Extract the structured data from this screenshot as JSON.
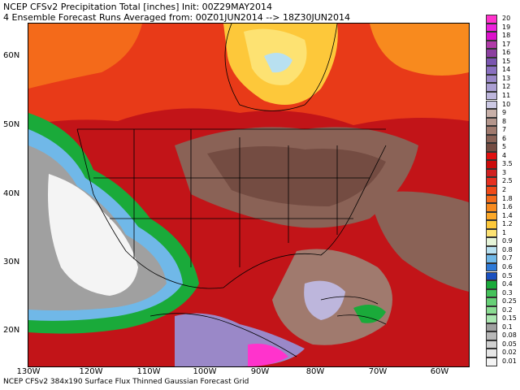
{
  "header": {
    "line1": "NCEP CFSv2 Precipitation Total [inches] Init: 00Z29MAY2014",
    "line2": "4 Ensemble Forecast Runs Averaged from: 00Z01JUN2014 --> 18Z30JUN2014"
  },
  "footer": "NCEP CFSv2 384x190 Surface Flux Thinned Gaussian Forecast Grid",
  "axes": {
    "lat_labels": [
      "60N",
      "50N",
      "40N",
      "30N",
      "20N"
    ],
    "lon_labels": [
      "130W",
      "120W",
      "110W",
      "100W",
      "90W",
      "80W",
      "70W",
      "60W"
    ]
  },
  "legend": {
    "labels": [
      "20",
      "19",
      "18",
      "17",
      "16",
      "15",
      "14",
      "13",
      "12",
      "11",
      "10",
      "9",
      "8",
      "7",
      "6",
      "5",
      "4",
      "3.5",
      "3",
      "2.5",
      "2",
      "1.8",
      "1.6",
      "1.4",
      "1.2",
      "1",
      "0.9",
      "0.8",
      "0.7",
      "0.6",
      "0.5",
      "0.4",
      "0.3",
      "0.25",
      "0.2",
      "0.15",
      "0.1",
      "0.08",
      "0.05",
      "0.02",
      "0.01"
    ],
    "colors": [
      "#ff33cc",
      "#ee22dd",
      "#dd11cc",
      "#b03aa8",
      "#8c3fa0",
      "#7a55b0",
      "#8a70c0",
      "#9a88c8",
      "#ab9fd2",
      "#bdb6dc",
      "#ccc9e4",
      "#c8b0a8",
      "#b4968c",
      "#a07a6e",
      "#8a6256",
      "#744c42",
      "#e01010",
      "#cc0c0c",
      "#d02020",
      "#e63020",
      "#f04a18",
      "#f46a1a",
      "#f88a1e",
      "#fca828",
      "#fdc83a",
      "#fde272",
      "#e6f4d8",
      "#b8e0f0",
      "#70b8e8",
      "#2e7ad8",
      "#1a50c0",
      "#1aaa3a",
      "#44c25a",
      "#66d076",
      "#8adc92",
      "#aae6b0",
      "#a0a0a0",
      "#b8b8b8",
      "#d0d0d0",
      "#e6e6e6",
      "#f4f4f4"
    ]
  },
  "map": {
    "background": "#b8101a"
  }
}
